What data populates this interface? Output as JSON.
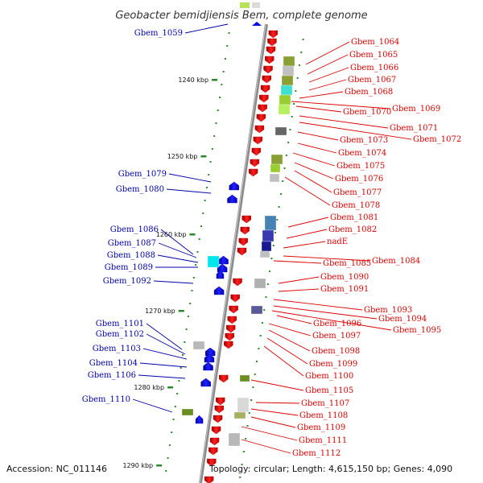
{
  "title": "Geobacter bemidjiensis Bem, complete genome",
  "footer": {
    "accession": "Accession: NC_011146",
    "topology": "Topology: circular; Length: 4,615,150 bp; Genes: 4,090"
  },
  "colors": {
    "forward_gene": "#ff0000",
    "reverse_gene": "#0000ff",
    "forward_label": "#dd0000",
    "reverse_label": "#0000aa",
    "backbone": "#888888",
    "tick": "#2a8a2a"
  },
  "scale_labels": [
    "1240 kbp",
    "1250 kbp",
    "1260 kbp",
    "1270 kbp",
    "1280 kbp",
    "1290 kbp"
  ],
  "left_labels": [
    "Gbem_1059",
    "Gbem_1079",
    "Gbem_1080",
    "Gbem_1086",
    "Gbem_1087",
    "Gbem_1088",
    "Gbem_1089",
    "Gbem_1092",
    "Gbem_1101",
    "Gbem_1102",
    "Gbem_1103",
    "Gbem_1104",
    "Gbem_1106",
    "Gbem_1110"
  ],
  "right_labels": [
    "Gbem_1064",
    "Gbem_1065",
    "Gbem_1066",
    "Gbem_1067",
    "Gbem_1068",
    "Gbem_1069",
    "Gbem_1070",
    "Gbem_1071",
    "Gbem_1072",
    "Gbem_1073",
    "Gbem_1074",
    "Gbem_1075",
    "Gbem_1076",
    "Gbem_1077",
    "Gbem_1078",
    "Gbem_1081",
    "Gbem_1082",
    "nadE",
    "Gbem_1084",
    "Gbem_1085",
    "Gbem_1090",
    "Gbem_1091",
    "Gbem_1093",
    "Gbem_1094",
    "Gbem_1095",
    "Gbem_1096",
    "Gbem_1097",
    "Gbem_1098",
    "Gbem_1099",
    "Gbem_1100",
    "Gbem_1105",
    "Gbem_1107",
    "Gbem_1108",
    "Gbem_1109",
    "Gbem_1111",
    "Gbem_1112"
  ]
}
